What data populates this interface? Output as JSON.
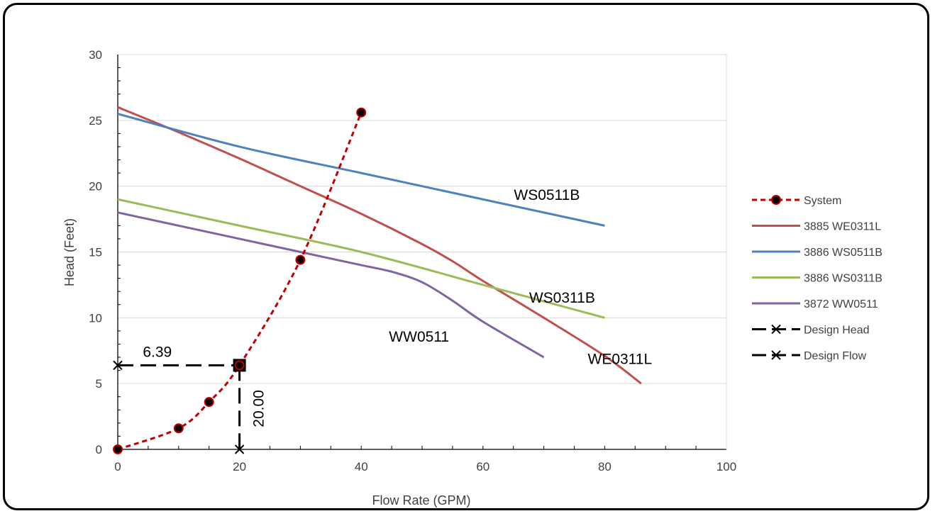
{
  "chart_data": {
    "type": "line",
    "xlabel": "Flow Rate (GPM)",
    "ylabel": "Head (Feet)",
    "xlim": [
      0,
      100
    ],
    "ylim": [
      0,
      30
    ],
    "x_ticks": [
      0,
      20,
      40,
      60,
      80,
      100
    ],
    "y_ticks": [
      0,
      5,
      10,
      15,
      20,
      25,
      30
    ],
    "grid": "horizontal",
    "legend_position": "right",
    "series": [
      {
        "name": "System",
        "color": "#C00000",
        "style": "dashed-markers",
        "x": [
          0,
          10,
          15,
          20,
          30,
          40
        ],
        "y": [
          0,
          1.6,
          3.6,
          6.39,
          14.4,
          25.6
        ]
      },
      {
        "name": "3885 WE0311L",
        "color": "#C0504D",
        "style": "solid",
        "x": [
          0,
          10,
          20,
          30,
          40,
          50,
          55,
          60,
          70,
          80,
          86
        ],
        "y": [
          26,
          24.1,
          22.1,
          20.0,
          17.9,
          15.6,
          14.3,
          12.8,
          10.0,
          7.1,
          5.0
        ]
      },
      {
        "name": "3886 WS0511B",
        "color": "#4F81BD",
        "style": "solid",
        "x": [
          0,
          20,
          40,
          60,
          80
        ],
        "y": [
          25.5,
          23.0,
          21.0,
          19.0,
          17.0
        ]
      },
      {
        "name": "3886 WS0311B",
        "color": "#9BBB59",
        "style": "solid",
        "x": [
          0,
          20,
          40,
          60,
          80
        ],
        "y": [
          19.0,
          17.0,
          15.0,
          12.5,
          10.0
        ]
      },
      {
        "name": "3872 WW0511",
        "color": "#8064A2",
        "style": "solid",
        "x": [
          0,
          20,
          30,
          40,
          45,
          50,
          55,
          60,
          70
        ],
        "y": [
          18.0,
          16.0,
          15.0,
          14.0,
          13.5,
          12.7,
          11.3,
          9.7,
          7.0
        ]
      },
      {
        "name": "Design Head",
        "color": "#000000",
        "style": "dashed-x",
        "x": [
          0,
          20
        ],
        "y": [
          6.39,
          6.39
        ]
      },
      {
        "name": "Design Flow",
        "color": "#000000",
        "style": "dashed-x",
        "x": [
          20,
          20
        ],
        "y": [
          0,
          6.39
        ]
      }
    ],
    "curve_labels": [
      {
        "text": "WS0511B",
        "series": "3886 WS0511B"
      },
      {
        "text": "WS0311B",
        "series": "3886 WS0311B"
      },
      {
        "text": "WW0511",
        "series": "3872 WW0511"
      },
      {
        "text": "WE0311L",
        "series": "3885 WE0311L"
      }
    ],
    "design_point": {
      "flow": 20,
      "head": 6.39,
      "flow_label": "20.00",
      "head_label": "6.39"
    }
  }
}
